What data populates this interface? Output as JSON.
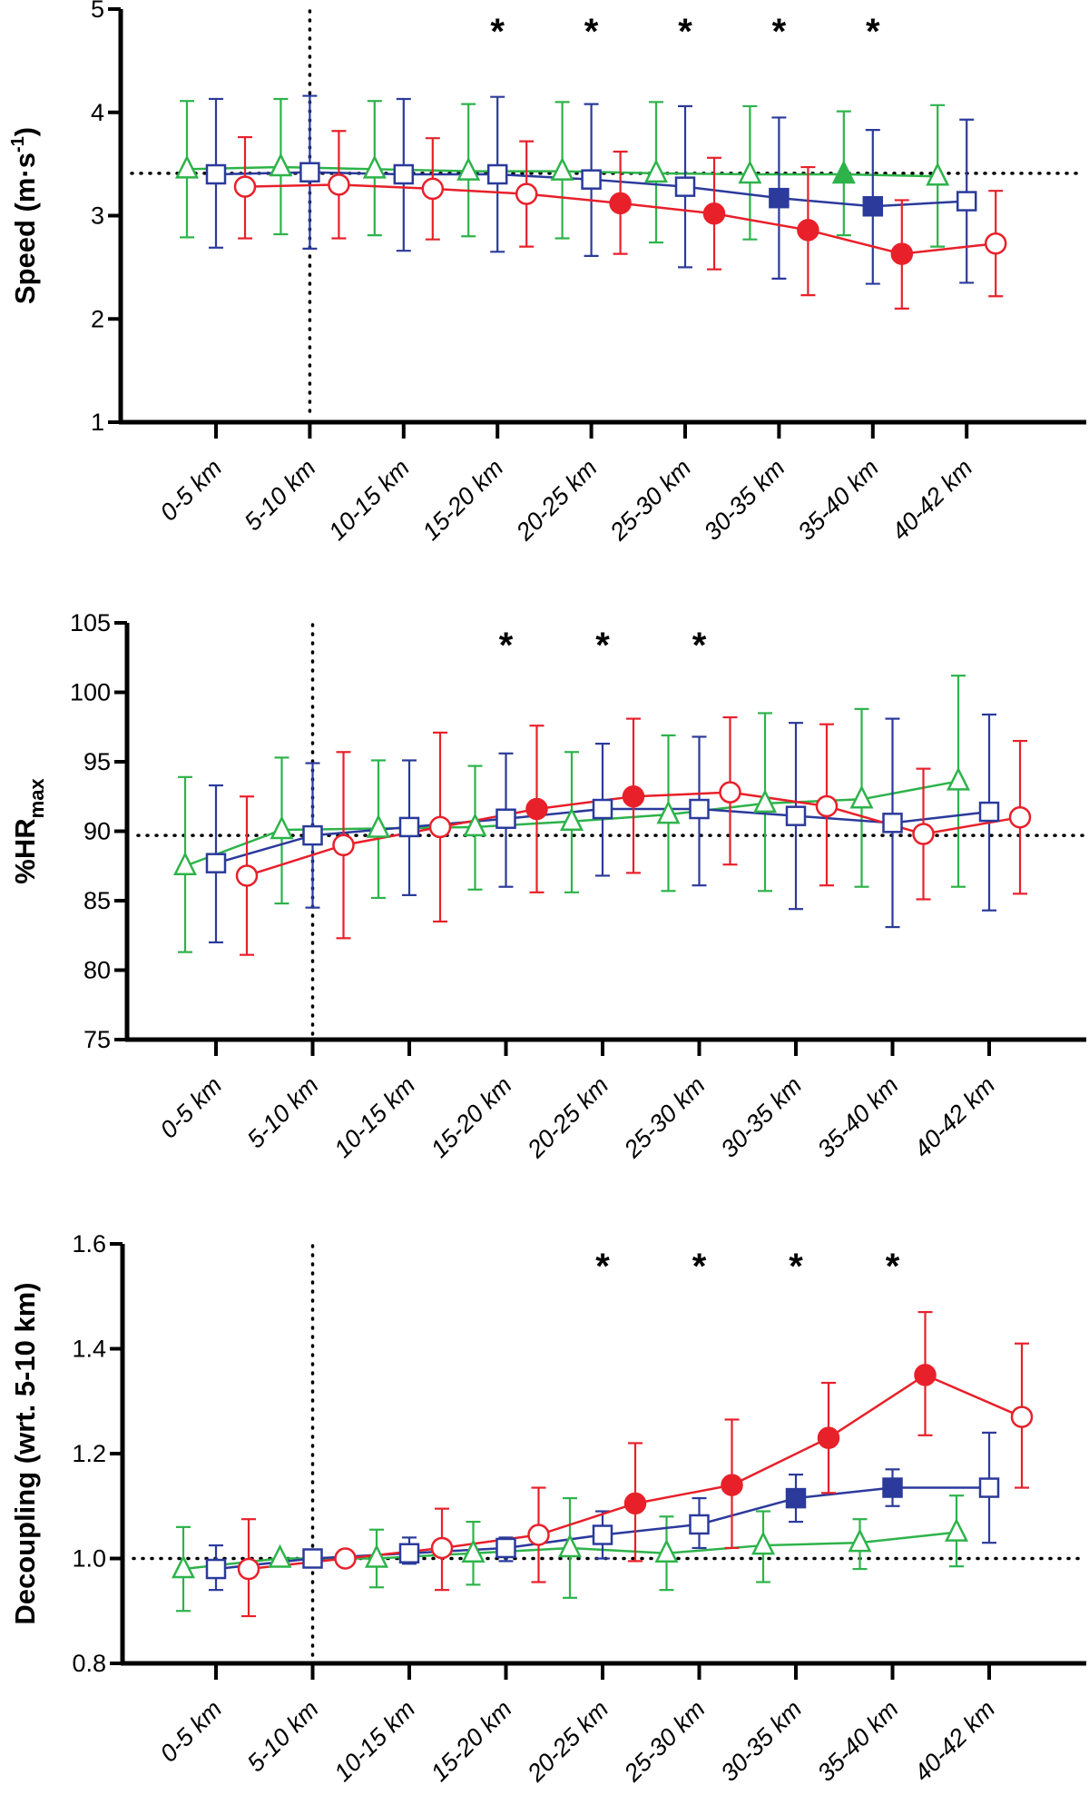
{
  "chart_data": [
    {
      "type": "line",
      "ylabel": "Speed (m·s",
      "ylabel_sup": "-1",
      "ylabel_end": ")",
      "ylim": [
        1,
        5
      ],
      "yticks": [
        1,
        2,
        3,
        4,
        5
      ],
      "categories": [
        "0-5 km",
        "5-10 km",
        "10-15 km",
        "15-20 km",
        "20-25 km",
        "25-30 km",
        "30-35 km",
        "35-40 km",
        "40-42 km"
      ],
      "reference_line": 3.41,
      "reference_category": "5-10 km",
      "significance_marker": "*",
      "significant_categories": [
        "15-20 km",
        "20-25 km",
        "25-30 km",
        "30-35 km",
        "35-40 km"
      ],
      "series": [
        {
          "name": "green",
          "color": "#2db34a",
          "marker": "triangle",
          "values": [
            3.45,
            3.47,
            3.45,
            3.43,
            3.43,
            3.41,
            3.4,
            3.4,
            3.38
          ],
          "upper": [
            4.11,
            4.13,
            4.11,
            4.08,
            4.1,
            4.1,
            4.06,
            4.01,
            4.07
          ],
          "lower": [
            2.79,
            2.82,
            2.81,
            2.8,
            2.78,
            2.74,
            2.77,
            2.81,
            2.7
          ],
          "filled": [
            false,
            false,
            false,
            false,
            false,
            false,
            false,
            true,
            false
          ]
        },
        {
          "name": "blue",
          "color": "#2b3a9b",
          "marker": "square",
          "values": [
            3.4,
            3.42,
            3.4,
            3.4,
            3.35,
            3.28,
            3.17,
            3.09,
            3.14
          ],
          "upper": [
            4.13,
            4.16,
            4.13,
            4.15,
            4.08,
            4.06,
            3.95,
            3.83,
            3.93
          ],
          "lower": [
            2.69,
            2.68,
            2.66,
            2.65,
            2.61,
            2.5,
            2.39,
            2.34,
            2.35
          ],
          "filled": [
            false,
            false,
            false,
            false,
            false,
            false,
            true,
            true,
            false
          ]
        },
        {
          "name": "red",
          "color": "#e8202a",
          "marker": "circle",
          "values": [
            3.28,
            3.3,
            3.26,
            3.21,
            3.12,
            3.02,
            2.86,
            2.63,
            2.73
          ],
          "upper": [
            3.76,
            3.82,
            3.75,
            3.72,
            3.62,
            3.56,
            3.47,
            3.15,
            3.24
          ],
          "lower": [
            2.78,
            2.78,
            2.77,
            2.7,
            2.63,
            2.48,
            2.23,
            2.1,
            2.22
          ],
          "filled": [
            false,
            false,
            false,
            false,
            true,
            true,
            true,
            true,
            false
          ]
        }
      ]
    },
    {
      "type": "line",
      "ylabel": "%HR",
      "ylabel_sub": "max",
      "ylim": [
        75,
        105
      ],
      "yticks": [
        75,
        80,
        85,
        90,
        95,
        100,
        105
      ],
      "categories": [
        "0-5 km",
        "5-10 km",
        "10-15 km",
        "15-20 km",
        "20-25 km",
        "25-30 km",
        "30-35 km",
        "35-40 km",
        "40-42 km"
      ],
      "reference_line": 89.7,
      "reference_category": "5-10 km",
      "significance_marker": "*",
      "significant_categories": [
        "15-20 km",
        "20-25 km",
        "25-30 km"
      ],
      "series": [
        {
          "name": "green",
          "color": "#2db34a",
          "marker": "triangle",
          "values": [
            87.5,
            90.1,
            90.2,
            90.3,
            90.7,
            91.2,
            92.0,
            92.3,
            93.6
          ],
          "upper": [
            93.9,
            95.3,
            95.1,
            94.7,
            95.7,
            96.9,
            98.5,
            98.8,
            101.2
          ],
          "lower": [
            81.3,
            84.8,
            85.2,
            85.8,
            85.6,
            85.7,
            85.7,
            86.0,
            86.0
          ],
          "filled": [
            false,
            false,
            false,
            false,
            false,
            false,
            false,
            false,
            false
          ]
        },
        {
          "name": "blue",
          "color": "#2b3a9b",
          "marker": "square",
          "values": [
            87.7,
            89.7,
            90.3,
            90.9,
            91.6,
            91.6,
            91.1,
            90.6,
            91.4
          ],
          "upper": [
            93.3,
            94.9,
            95.1,
            95.6,
            96.3,
            96.8,
            97.8,
            98.1,
            98.4
          ],
          "lower": [
            82.0,
            84.5,
            85.4,
            86.0,
            86.8,
            86.1,
            84.4,
            83.1,
            84.3
          ],
          "filled": [
            false,
            false,
            false,
            false,
            false,
            false,
            false,
            false,
            false
          ]
        },
        {
          "name": "red",
          "color": "#e8202a",
          "marker": "circle",
          "values": [
            86.8,
            89.0,
            90.3,
            91.6,
            92.5,
            92.8,
            91.8,
            89.8,
            91.0
          ],
          "upper": [
            92.5,
            95.7,
            97.1,
            97.6,
            98.1,
            98.2,
            97.7,
            94.5,
            96.5
          ],
          "lower": [
            81.1,
            82.3,
            83.5,
            85.6,
            87.0,
            87.6,
            86.1,
            85.1,
            85.5
          ],
          "filled": [
            false,
            false,
            false,
            true,
            true,
            false,
            false,
            false,
            false
          ]
        }
      ]
    },
    {
      "type": "line",
      "ylabel": "Decoupling (wrt. 5-10 km)",
      "ylim": [
        0.8,
        1.6
      ],
      "yticks": [
        "0.8",
        "1.0",
        "1.2",
        "1.4",
        "1.6"
      ],
      "categories": [
        "0-5 km",
        "5-10 km",
        "10-15 km",
        "15-20 km",
        "20-25 km",
        "25-30 km",
        "30-35 km",
        "35-40 km",
        "40-42 km"
      ],
      "reference_line": 1.0,
      "reference_category": "5-10 km",
      "significance_marker": "*",
      "significant_categories": [
        "20-25 km",
        "25-30 km",
        "30-35 km",
        "35-40 km"
      ],
      "series": [
        {
          "name": "green",
          "color": "#2db34a",
          "marker": "triangle",
          "values": [
            0.98,
            1.0,
            1.0,
            1.01,
            1.02,
            1.01,
            1.025,
            1.03,
            1.05
          ],
          "upper": [
            1.06,
            1.0,
            1.055,
            1.07,
            1.115,
            1.08,
            1.09,
            1.075,
            1.12
          ],
          "lower": [
            0.9,
            1.0,
            0.945,
            0.95,
            0.925,
            0.94,
            0.955,
            0.98,
            0.985
          ],
          "filled": [
            false,
            false,
            false,
            false,
            false,
            false,
            false,
            false,
            false
          ]
        },
        {
          "name": "blue",
          "color": "#2b3a9b",
          "marker": "square",
          "values": [
            0.98,
            1.0,
            1.01,
            1.02,
            1.045,
            1.065,
            1.115,
            1.135,
            1.135
          ],
          "upper": [
            1.025,
            1.0,
            1.04,
            1.04,
            1.09,
            1.115,
            1.16,
            1.17,
            1.24
          ],
          "lower": [
            0.94,
            1.0,
            0.99,
            0.995,
            1.0,
            1.02,
            1.07,
            1.1,
            1.03
          ],
          "filled": [
            false,
            false,
            false,
            false,
            false,
            false,
            true,
            true,
            false
          ]
        },
        {
          "name": "red",
          "color": "#e8202a",
          "marker": "circle",
          "values": [
            0.98,
            1.0,
            1.02,
            1.045,
            1.105,
            1.14,
            1.23,
            1.35,
            1.27
          ],
          "upper": [
            1.075,
            1.0,
            1.095,
            1.135,
            1.22,
            1.265,
            1.335,
            1.47,
            1.41
          ],
          "lower": [
            0.89,
            1.0,
            0.94,
            0.955,
            0.995,
            1.02,
            1.125,
            1.235,
            1.135
          ],
          "filled": [
            false,
            false,
            false,
            false,
            true,
            true,
            true,
            true,
            false
          ]
        }
      ]
    }
  ]
}
